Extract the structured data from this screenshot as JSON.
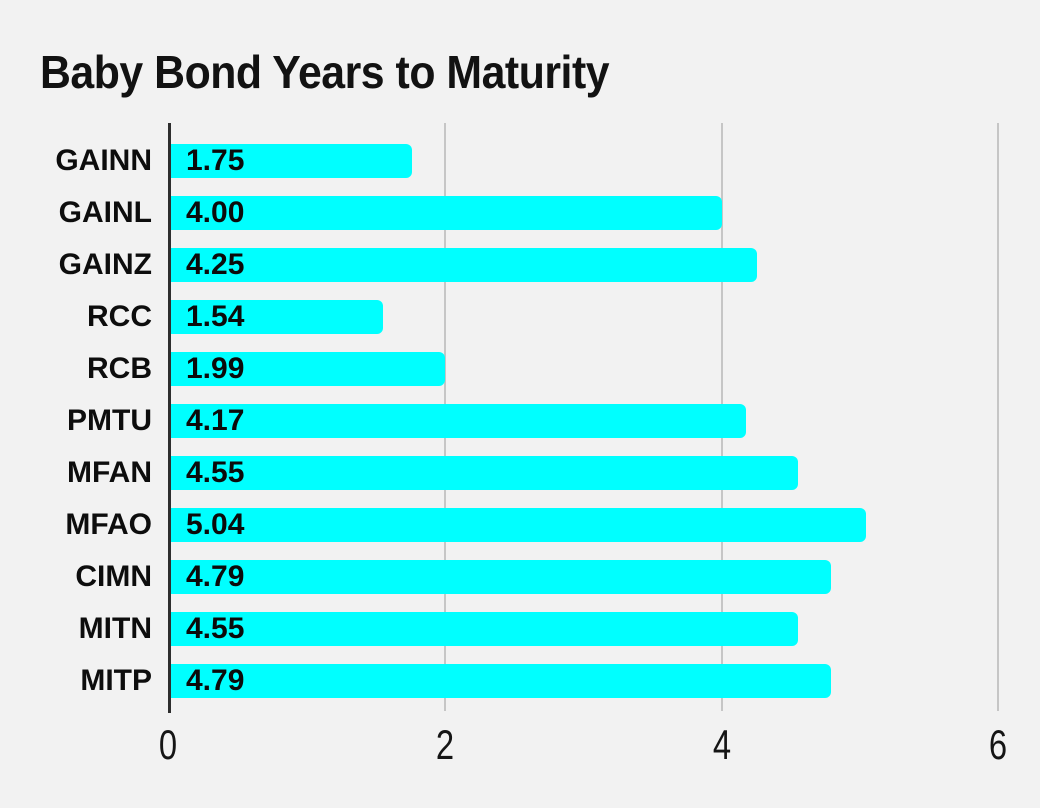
{
  "title": "Baby Bond Years to Maturity",
  "chart_data": {
    "type": "bar",
    "orientation": "horizontal",
    "title": "Baby Bond Years to Maturity",
    "categories": [
      "GAINN",
      "GAINL",
      "GAINZ",
      "RCC",
      "RCB",
      "PMTU",
      "MFAN",
      "MFAO",
      "CIMN",
      "MITN",
      "MITP"
    ],
    "values": [
      1.75,
      4.0,
      4.25,
      1.54,
      1.99,
      4.17,
      4.55,
      5.04,
      4.79,
      4.55,
      4.79
    ],
    "value_labels": [
      "1.75",
      "4.00",
      "4.25",
      "1.54",
      "1.99",
      "4.17",
      "4.55",
      "5.04",
      "4.79",
      "4.55",
      "4.79"
    ],
    "xlabel": "",
    "ylabel": "",
    "xlim": [
      0,
      6
    ],
    "x_ticks": [
      "0",
      "2",
      "4",
      "6"
    ],
    "x_tick_values": [
      0,
      2,
      4,
      6
    ],
    "grid": true,
    "legend": false,
    "value_label_position": "inside-left",
    "colors": {
      "bar": "#00ffff",
      "background": "#f2f2f2",
      "gridline": "#c6c6c6",
      "axis_line": "#2e2e2e",
      "text": "#0d0d0d"
    }
  }
}
